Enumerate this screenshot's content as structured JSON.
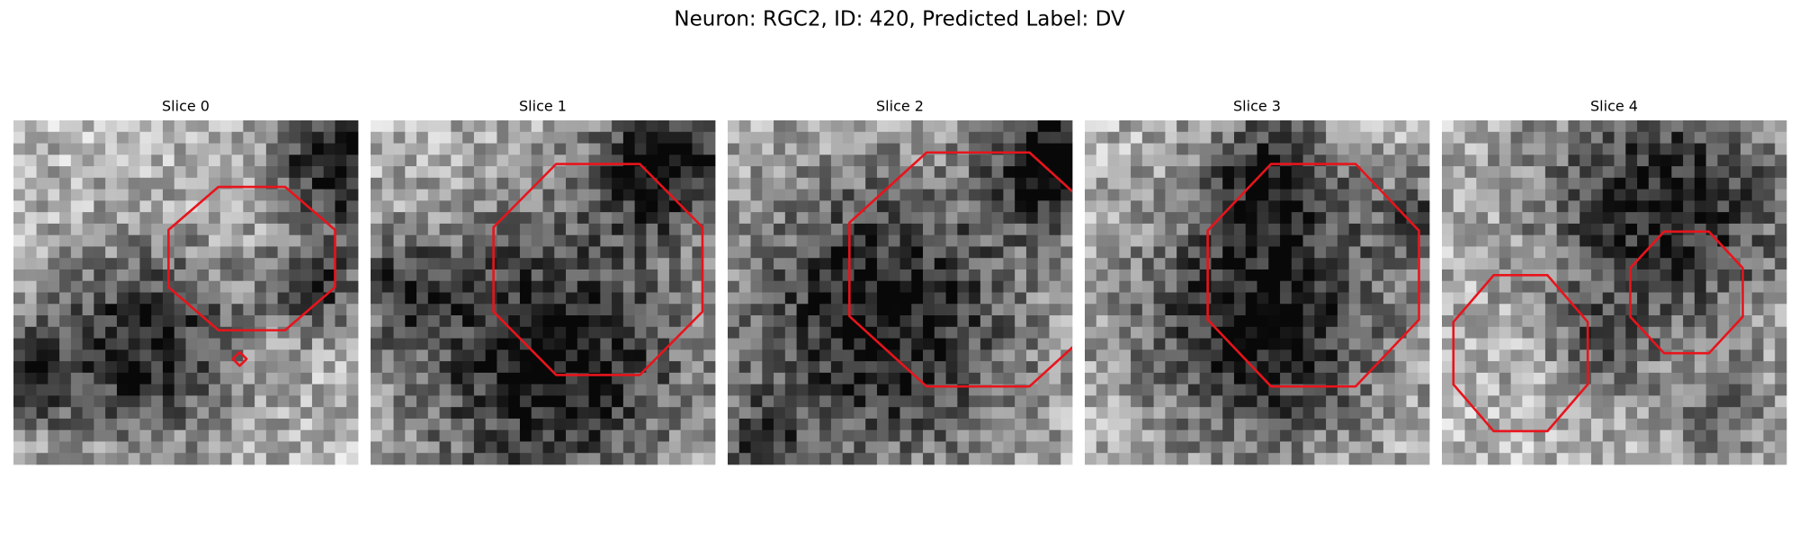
{
  "title": "Neuron: RGC2, ID: 420, Predicted Label: DV",
  "panels": [
    {
      "title": "Slice 0"
    },
    {
      "title": "Slice 1"
    },
    {
      "title": "Slice 2"
    },
    {
      "title": "Slice 3"
    },
    {
      "title": "Slice 4"
    }
  ]
}
